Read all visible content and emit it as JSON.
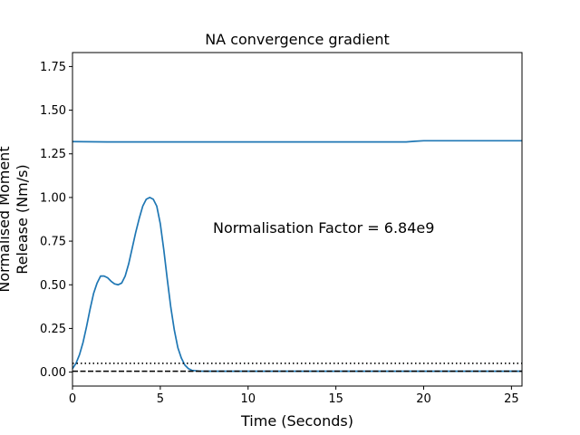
{
  "chart_data": {
    "type": "line",
    "title": "NA convergence gradient",
    "xlabel": "Time (Seconds)",
    "ylabel_line1": "Normalised Moment",
    "ylabel_line2": "Release (Nm/s)",
    "xlim": [
      0,
      25.6
    ],
    "ylim": [
      -0.08,
      1.83
    ],
    "xticks": [
      0,
      5,
      10,
      15,
      20,
      25
    ],
    "yticks": [
      0.0,
      0.25,
      0.5,
      0.75,
      1.0,
      1.25,
      1.5,
      1.75
    ],
    "xtick_labels": [
      "0",
      "5",
      "10",
      "15",
      "20",
      "25"
    ],
    "ytick_labels": [
      "0.00",
      "0.25",
      "0.50",
      "0.75",
      "1.00",
      "1.25",
      "1.50",
      "1.75"
    ],
    "annotation": "Normalisation Factor = 6.84e9",
    "line_color": "#1f77b4",
    "series": [
      {
        "style": "solid",
        "x": [
          0,
          0.2,
          0.4,
          0.6,
          0.8,
          1.0,
          1.2,
          1.4,
          1.6,
          1.8,
          2.0,
          2.2,
          2.4,
          2.6,
          2.8,
          3.0,
          3.2,
          3.4,
          3.6,
          3.8,
          4.0,
          4.2,
          4.4,
          4.6,
          4.8,
          5.0,
          5.2,
          5.4,
          5.6,
          5.8,
          6.0,
          6.2,
          6.4,
          6.6,
          6.8,
          7.0,
          7.2,
          7.5,
          8.0,
          9.0,
          10.0,
          12.0,
          15.0,
          18.0,
          20.0,
          22.0,
          25.6
        ],
        "y": [
          0.02,
          0.05,
          0.1,
          0.17,
          0.26,
          0.36,
          0.45,
          0.51,
          0.55,
          0.55,
          0.54,
          0.52,
          0.505,
          0.5,
          0.51,
          0.55,
          0.62,
          0.71,
          0.8,
          0.88,
          0.95,
          0.99,
          1.0,
          0.99,
          0.95,
          0.85,
          0.7,
          0.53,
          0.37,
          0.24,
          0.14,
          0.08,
          0.04,
          0.02,
          0.01,
          0.008,
          0.006,
          0.005,
          0.005,
          0.005,
          0.005,
          0.005,
          0.005,
          0.005,
          0.005,
          0.005,
          0.005
        ]
      },
      {
        "style": "solid",
        "x": [
          0,
          2,
          5,
          10,
          15,
          18,
          19.0,
          19.5,
          20.0,
          21.0,
          25.6
        ],
        "y": [
          1.32,
          1.318,
          1.318,
          1.318,
          1.318,
          1.318,
          1.318,
          1.322,
          1.325,
          1.325,
          1.325
        ]
      },
      {
        "style": "dotted",
        "color": "#000000",
        "x": [
          0,
          25.6
        ],
        "y": [
          0.05,
          0.05
        ]
      },
      {
        "style": "dashed",
        "color": "#000000",
        "x": [
          0,
          25.6
        ],
        "y": [
          0.005,
          0.005
        ]
      }
    ]
  }
}
